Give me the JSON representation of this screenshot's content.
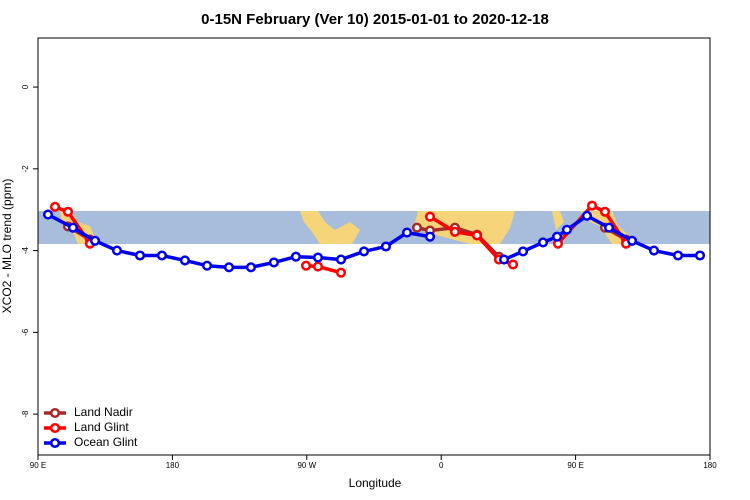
{
  "chart_data": {
    "type": "line",
    "title": "0-15N February (Ver 10)   2015-01-01 to 2020-12-18",
    "x_label": "Longitude",
    "y_label": "XCO2 - MLO trend (ppm)",
    "xlim": [
      90,
      540
    ],
    "xticks": [
      {
        "value": 90,
        "label": "90 E"
      },
      180,
      {
        "value": 270,
        "label": "90 W"
      },
      {
        "value": 360,
        "label": "0"
      },
      {
        "value": 450,
        "label": "90 E"
      },
      {
        "value": 540,
        "label": "180"
      }
    ],
    "ylim": [
      -9,
      1.2
    ],
    "yticks": [
      0,
      -2,
      -4,
      -6,
      -8
    ],
    "legend": "bottom-left",
    "series": [
      {
        "name": "Land Nadir",
        "color": "#a52a2a",
        "x": [
          110.1,
          124.8,
          null,
          343.8,
          352.5,
          369.2,
          384,
          398.7,
          null,
          469.7,
          483.8
        ],
        "values": [
          -3.41,
          -3.73,
          null,
          -3.44,
          -3.51,
          -3.44,
          -3.61,
          -4.15,
          null,
          -3.44,
          -3.73
        ]
      },
      {
        "name": "Land Glint",
        "color": "#ff0000",
        "x": [
          101.4,
          110.1,
          124.8,
          null,
          269.5,
          277.5,
          292.9,
          null,
          352.5,
          369.2,
          384,
          398.7,
          408.1,
          null,
          438.2,
          461,
          469.7,
          483.8
        ],
        "values": [
          -2.93,
          -3.05,
          -3.83,
          null,
          -4.37,
          -4.39,
          -4.54,
          null,
          -3.17,
          -3.54,
          -3.63,
          -4.22,
          -4.34,
          null,
          -3.83,
          -2.9,
          -3.05,
          -3.83
        ]
      },
      {
        "name": "Ocean Glint",
        "color": "#0000ee",
        "x": [
          96.7,
          113.4,
          128.2,
          142.9,
          158.3,
          173,
          188.4,
          203.2,
          217.9,
          232.6,
          248,
          262.7,
          277.5,
          292.9,
          308.3,
          323,
          337.1,
          352.5,
          null,
          402.1,
          414.8,
          428.2,
          437.6,
          444.2,
          457.6,
          472.4,
          487.8,
          502.5,
          518.6,
          533.3
        ],
        "values": [
          -3.12,
          -3.44,
          -3.76,
          -4.0,
          -4.12,
          -4.12,
          -4.24,
          -4.37,
          -4.41,
          -4.41,
          -4.29,
          -4.15,
          -4.17,
          -4.22,
          -4.02,
          -3.9,
          -3.56,
          -3.66,
          null,
          -4.22,
          -4.02,
          -3.8,
          -3.66,
          -3.49,
          -3.15,
          -3.44,
          -3.76,
          -4.0,
          -4.12,
          -4.12
        ]
      }
    ]
  }
}
